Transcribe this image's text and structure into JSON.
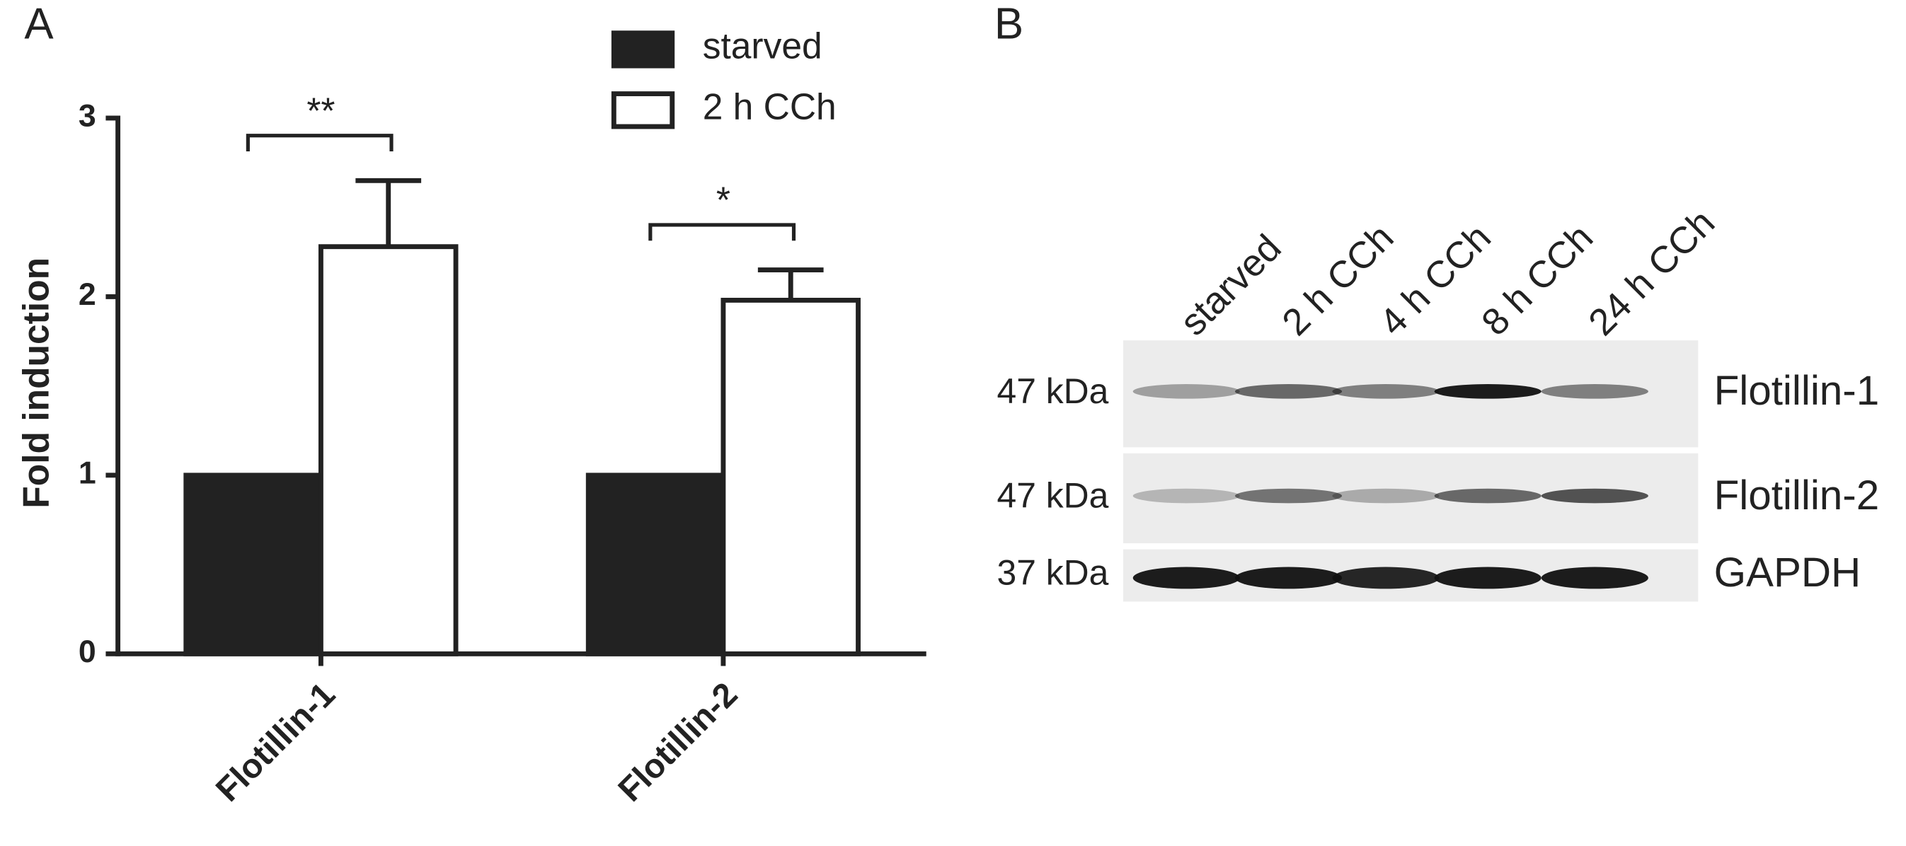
{
  "chart_data": {
    "type": "bar",
    "panel_label": "A",
    "ylabel": "Fold induction",
    "categories": [
      "Flotillin-1",
      "Flotillin-2"
    ],
    "series": [
      {
        "name": "starved",
        "color": "#222222",
        "values": [
          1,
          1
        ]
      },
      {
        "name": "2 h CCh",
        "color": "#ffffff",
        "values": [
          2.28,
          1.98
        ],
        "errors": [
          0.37,
          0.17
        ]
      }
    ],
    "annotations": [
      "**",
      "*"
    ],
    "ylim": [
      0,
      3
    ],
    "yticks": [
      0,
      1,
      2,
      3
    ],
    "grid": false,
    "legend": "upper right"
  },
  "blot": {
    "panel_label": "B",
    "lanes": [
      "starved",
      "2 h CCh",
      "4 h CCh",
      "8 h CCh",
      "24 h CCh"
    ],
    "rows": [
      {
        "size": "47 kDa",
        "label": "Flotillin-1"
      },
      {
        "size": "47 kDa",
        "label": "Flotillin-2"
      },
      {
        "size": "37 kDa",
        "label": "GAPDH"
      }
    ]
  }
}
